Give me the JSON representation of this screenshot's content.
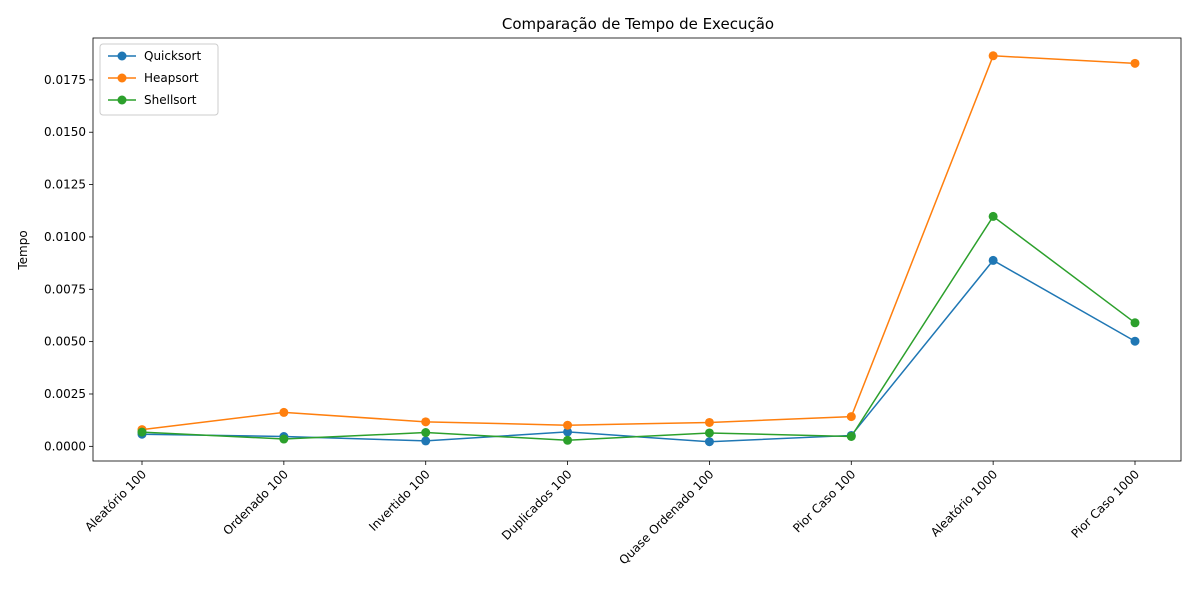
{
  "chart_data": {
    "type": "line",
    "title": "Comparação de Tempo de Execução",
    "xlabel": "",
    "ylabel": "Tempo",
    "categories": [
      "Aleatório 100",
      "Ordenado 100",
      "Invertido 100",
      "Duplicados 100",
      "Quase Ordenado 100",
      "Pior Caso 100",
      "Aleatório 1000",
      "Pior Caso 1000"
    ],
    "ylim": [
      -0.0007,
      0.0195
    ],
    "yticks": [
      "0.0000",
      "0.0025",
      "0.0050",
      "0.0075",
      "0.0100",
      "0.0125",
      "0.0150",
      "0.0175"
    ],
    "ytick_values": [
      0,
      0.0025,
      0.005,
      0.0075,
      0.01,
      0.0125,
      0.015,
      0.0175
    ],
    "grid": false,
    "legend": "top-left",
    "series": [
      {
        "name": "Quicksort",
        "color": "#1f77b4",
        "values": [
          0.00058,
          0.00047,
          0.00026,
          0.00069,
          0.00022,
          0.00052,
          0.00888,
          0.00502
        ]
      },
      {
        "name": "Heapsort",
        "color": "#ff7f0e",
        "values": [
          0.0008,
          0.00162,
          0.00117,
          0.00101,
          0.00114,
          0.00142,
          0.01865,
          0.01829
        ]
      },
      {
        "name": "Shellsort",
        "color": "#2ca02c",
        "values": [
          0.00068,
          0.00035,
          0.00066,
          0.00029,
          0.00064,
          0.00047,
          0.01098,
          0.0059
        ]
      }
    ]
  }
}
